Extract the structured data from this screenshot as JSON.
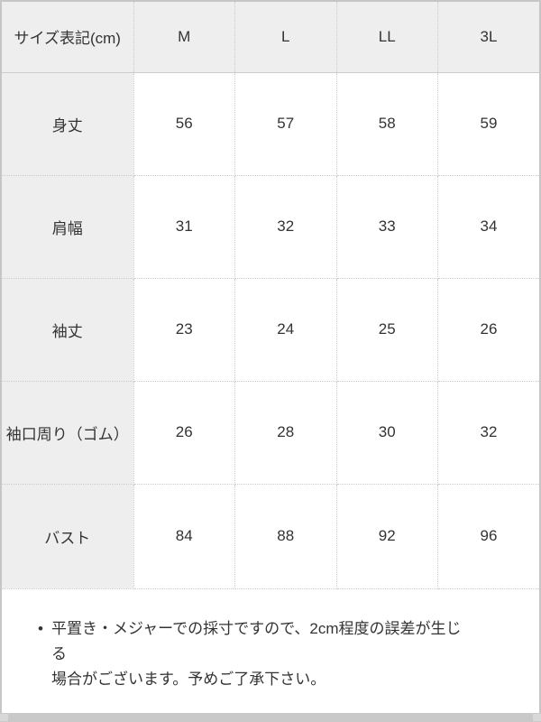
{
  "table": {
    "header": {
      "label": "サイズ表記(cm)",
      "sizes": [
        "M",
        "L",
        "LL",
        "3L"
      ]
    },
    "rows": [
      {
        "label": "身丈",
        "values": [
          "56",
          "57",
          "58",
          "59"
        ]
      },
      {
        "label": "肩幅",
        "values": [
          "31",
          "32",
          "33",
          "34"
        ]
      },
      {
        "label": "袖丈",
        "values": [
          "23",
          "24",
          "25",
          "26"
        ]
      },
      {
        "label": "袖口周り（ゴム）",
        "values": [
          "26",
          "28",
          "30",
          "32"
        ]
      },
      {
        "label": "バスト",
        "values": [
          "84",
          "88",
          "92",
          "96"
        ]
      }
    ]
  },
  "note": {
    "bullet": "•",
    "lines": [
      "平置き・メジャーでの採寸ですので、2cm程度の誤差が生じる",
      "場合がございます。予めご了承下さい。"
    ]
  },
  "colors": {
    "header_bg": "#eeeeee",
    "cell_border": "#cccccc",
    "outer_border": "#c6c6c6",
    "scrollbar": "#c9c9c9",
    "text": "#333333"
  }
}
